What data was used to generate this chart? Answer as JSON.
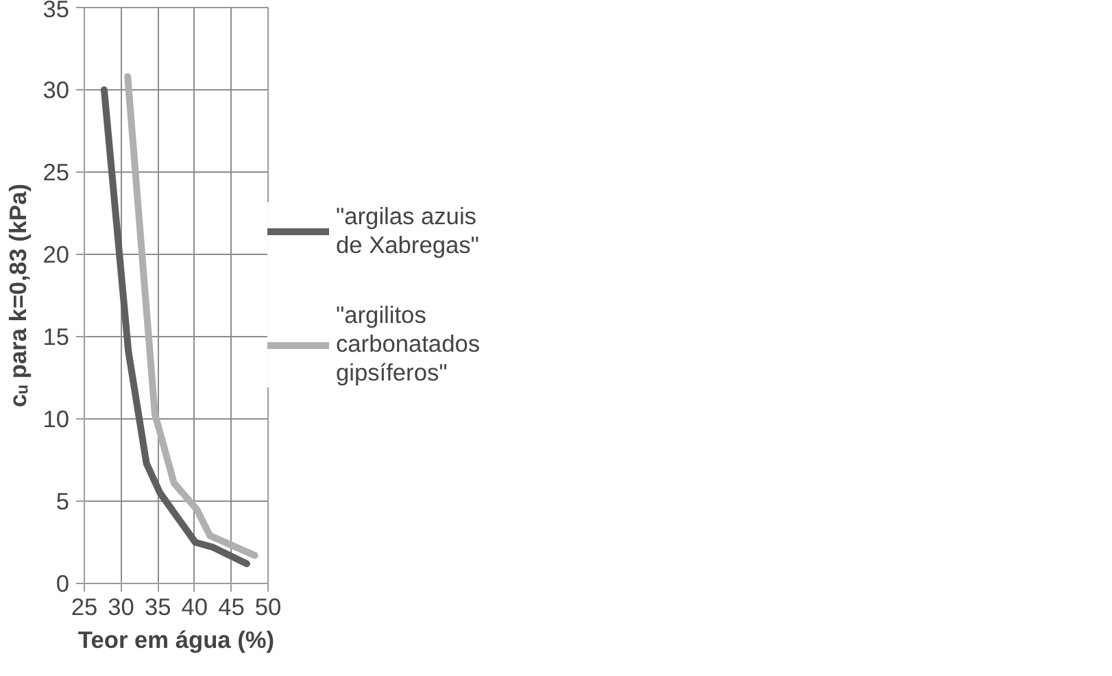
{
  "chart_data": {
    "type": "line",
    "xlabel": "Teor em água (%)",
    "ylabel": "cᵤ para k=0,83 (kPa)",
    "xlim": [
      25,
      50
    ],
    "xticks": [
      25,
      30,
      35,
      40,
      45,
      50
    ],
    "ylim": [
      0,
      35
    ],
    "yticks": [
      0,
      5,
      10,
      15,
      20,
      25,
      30,
      35
    ],
    "grid": true,
    "legend": "right",
    "marker": "none",
    "line_style": "solid",
    "series": [
      {
        "name": "\"argilas azuis de Xabregas\"",
        "color": "#5f5f5f",
        "x": [
          27.7,
          31.0,
          33.45,
          35.3,
          40.1,
          42.5,
          47.1
        ],
        "values": [
          30,
          14.1,
          7.3,
          5.5,
          2.5,
          2.2,
          1.2
        ]
      },
      {
        "name": "\"argilitos carbonatados gipsíferos\"",
        "color": "#b0b0b0",
        "x": [
          30.9,
          34.6,
          37.2,
          40.3,
          42.1,
          48.2
        ],
        "values": [
          30.8,
          10.3,
          6.1,
          4.5,
          2.9,
          1.7
        ]
      }
    ]
  }
}
